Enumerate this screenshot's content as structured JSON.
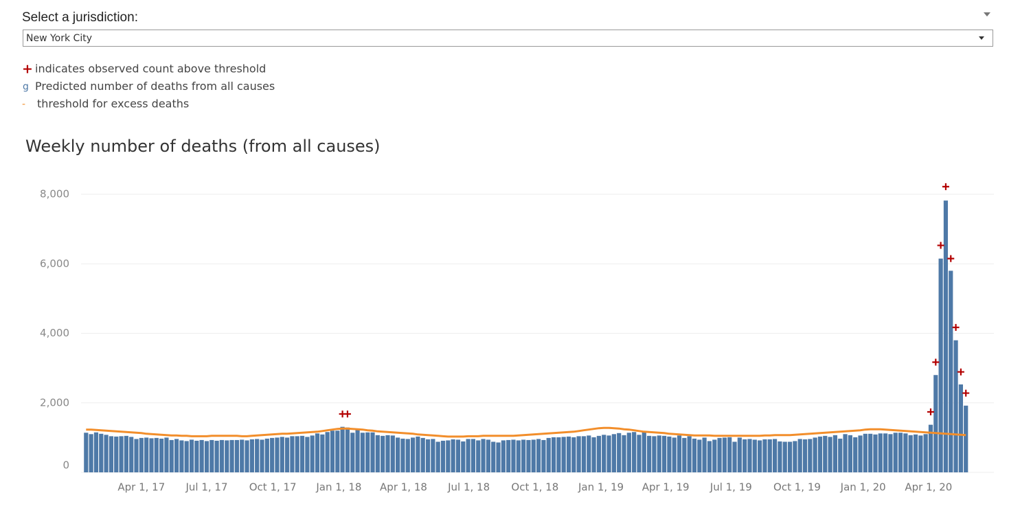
{
  "filter": {
    "label": "Select a jurisdiction:",
    "value": "New York City"
  },
  "chart_data": {
    "type": "bar",
    "title": "Weekly number of deaths (from all causes)",
    "x": [
      "2017-01-14",
      "2017-01-21",
      "2017-01-28",
      "2017-02-04",
      "2017-02-11",
      "2017-02-18",
      "2017-02-25",
      "2017-03-04",
      "2017-03-11",
      "2017-03-18",
      "2017-03-25",
      "2017-04-01",
      "2017-04-08",
      "2017-04-15",
      "2017-04-22",
      "2017-04-29",
      "2017-05-06",
      "2017-05-13",
      "2017-05-20",
      "2017-05-27",
      "2017-06-03",
      "2017-06-10",
      "2017-06-17",
      "2017-06-24",
      "2017-07-01",
      "2017-07-08",
      "2017-07-15",
      "2017-07-22",
      "2017-07-29",
      "2017-08-05",
      "2017-08-12",
      "2017-08-19",
      "2017-08-26",
      "2017-09-02",
      "2017-09-09",
      "2017-09-16",
      "2017-09-23",
      "2017-09-30",
      "2017-10-07",
      "2017-10-14",
      "2017-10-21",
      "2017-10-28",
      "2017-11-04",
      "2017-11-11",
      "2017-11-18",
      "2017-11-25",
      "2017-12-02",
      "2017-12-09",
      "2017-12-16",
      "2017-12-23",
      "2017-12-30",
      "2018-01-06",
      "2018-01-13",
      "2018-01-20",
      "2018-01-27",
      "2018-02-03",
      "2018-02-10",
      "2018-02-17",
      "2018-02-24",
      "2018-03-03",
      "2018-03-10",
      "2018-03-17",
      "2018-03-24",
      "2018-03-31",
      "2018-04-07",
      "2018-04-14",
      "2018-04-21",
      "2018-04-28",
      "2018-05-05",
      "2018-05-12",
      "2018-05-19",
      "2018-05-26",
      "2018-06-02",
      "2018-06-09",
      "2018-06-16",
      "2018-06-23",
      "2018-06-30",
      "2018-07-07",
      "2018-07-14",
      "2018-07-21",
      "2018-07-28",
      "2018-08-04",
      "2018-08-11",
      "2018-08-18",
      "2018-08-25",
      "2018-09-01",
      "2018-09-08",
      "2018-09-15",
      "2018-09-22",
      "2018-09-29",
      "2018-10-06",
      "2018-10-13",
      "2018-10-20",
      "2018-10-27",
      "2018-11-03",
      "2018-11-10",
      "2018-11-17",
      "2018-11-24",
      "2018-12-01",
      "2018-12-08",
      "2018-12-15",
      "2018-12-22",
      "2018-12-29",
      "2019-01-05",
      "2019-01-12",
      "2019-01-19",
      "2019-01-26",
      "2019-02-02",
      "2019-02-09",
      "2019-02-16",
      "2019-02-23",
      "2019-03-02",
      "2019-03-09",
      "2019-03-16",
      "2019-03-23",
      "2019-03-30",
      "2019-04-06",
      "2019-04-13",
      "2019-04-20",
      "2019-04-27",
      "2019-05-04",
      "2019-05-11",
      "2019-05-18",
      "2019-05-25",
      "2019-06-01",
      "2019-06-08",
      "2019-06-15",
      "2019-06-22",
      "2019-06-29",
      "2019-07-06",
      "2019-07-13",
      "2019-07-20",
      "2019-07-27",
      "2019-08-03",
      "2019-08-10",
      "2019-08-17",
      "2019-08-24",
      "2019-08-31",
      "2019-09-07",
      "2019-09-14",
      "2019-09-21",
      "2019-09-28",
      "2019-10-05",
      "2019-10-12",
      "2019-10-19",
      "2019-10-26",
      "2019-11-02",
      "2019-11-09",
      "2019-11-16",
      "2019-11-23",
      "2019-11-30",
      "2019-12-07",
      "2019-12-14",
      "2019-12-21",
      "2019-12-28",
      "2020-01-04",
      "2020-01-11",
      "2020-01-18",
      "2020-01-25",
      "2020-02-01",
      "2020-02-08",
      "2020-02-15",
      "2020-02-22",
      "2020-02-29",
      "2020-03-07",
      "2020-03-14",
      "2020-03-21",
      "2020-03-28",
      "2020-04-04",
      "2020-04-11",
      "2020-04-18",
      "2020-04-25",
      "2020-05-02",
      "2020-05-09",
      "2020-05-16",
      "2020-05-23"
    ],
    "series": [
      {
        "name": "indicates observed count above threshold",
        "symbol": "+",
        "type": "marker",
        "color": "#b30000",
        "values": [
          null,
          null,
          null,
          null,
          null,
          null,
          null,
          null,
          null,
          null,
          null,
          null,
          null,
          null,
          null,
          null,
          null,
          null,
          null,
          null,
          null,
          null,
          null,
          null,
          null,
          null,
          null,
          null,
          null,
          null,
          null,
          null,
          null,
          null,
          null,
          null,
          null,
          null,
          null,
          null,
          null,
          null,
          null,
          null,
          null,
          null,
          null,
          null,
          null,
          null,
          null,
          1680,
          1680,
          null,
          null,
          null,
          null,
          null,
          null,
          null,
          null,
          null,
          null,
          null,
          null,
          null,
          null,
          null,
          null,
          null,
          null,
          null,
          null,
          null,
          null,
          null,
          null,
          null,
          null,
          null,
          null,
          null,
          null,
          null,
          null,
          null,
          null,
          null,
          null,
          null,
          null,
          null,
          null,
          null,
          null,
          null,
          null,
          null,
          null,
          null,
          null,
          null,
          null,
          null,
          null,
          null,
          null,
          null,
          null,
          null,
          null,
          null,
          null,
          null,
          null,
          null,
          null,
          null,
          null,
          null,
          null,
          null,
          null,
          null,
          null,
          null,
          null,
          null,
          null,
          null,
          null,
          null,
          null,
          null,
          null,
          null,
          null,
          null,
          null,
          null,
          null,
          null,
          null,
          null,
          null,
          null,
          null,
          null,
          null,
          null,
          null,
          null,
          null,
          null,
          null,
          null,
          null,
          null,
          null,
          null,
          null,
          null,
          null,
          null,
          null,
          null,
          null,
          null,
          1740,
          3170,
          6530,
          8220,
          6150,
          4170,
          2890,
          2280
        ]
      },
      {
        "name": "Predicted number of deaths from all causes",
        "symbol": "g",
        "type": "bar",
        "color": "#4e79a7",
        "values": [
          1140,
          1100,
          1150,
          1110,
          1080,
          1040,
          1030,
          1040,
          1050,
          1020,
          960,
          990,
          1000,
          980,
          990,
          970,
          1000,
          930,
          960,
          920,
          900,
          940,
          910,
          930,
          900,
          930,
          910,
          930,
          920,
          930,
          930,
          940,
          920,
          950,
          960,
          940,
          970,
          990,
          1000,
          1020,
          1000,
          1040,
          1040,
          1050,
          1020,
          1060,
          1120,
          1090,
          1160,
          1200,
          1200,
          1310,
          1290,
          1140,
          1240,
          1140,
          1150,
          1150,
          1070,
          1050,
          1070,
          1060,
          1000,
          970,
          960,
          1000,
          1030,
          990,
          950,
          960,
          880,
          910,
          920,
          950,
          940,
          890,
          960,
          960,
          920,
          960,
          940,
          880,
          860,
          920,
          930,
          940,
          920,
          940,
          930,
          940,
          960,
          930,
          990,
          1010,
          1010,
          1020,
          1030,
          1010,
          1040,
          1040,
          1060,
          1010,
          1050,
          1080,
          1060,
          1100,
          1130,
          1070,
          1140,
          1160,
          1080,
          1190,
          1050,
          1040,
          1060,
          1050,
          1030,
          1000,
          1060,
          990,
          1040,
          970,
          940,
          1000,
          900,
          940,
          990,
          1000,
          1010,
          880,
          1000,
          950,
          960,
          940,
          920,
          950,
          950,
          960,
          890,
          880,
          880,
          900,
          960,
          950,
          960,
          1000,
          1030,
          1050,
          1020,
          1070,
          970,
          1100,
          1070,
          1010,
          1060,
          1110,
          1110,
          1090,
          1120,
          1120,
          1100,
          1140,
          1140,
          1120,
          1070,
          1090,
          1060,
          1100,
          1370,
          2800,
          6150,
          7820,
          5800,
          3800,
          2530,
          1920
        ]
      },
      {
        "name": "threshold for excess deaths",
        "symbol": "-",
        "type": "line",
        "color": "#f28e2b",
        "values": [
          1230,
          1230,
          1220,
          1210,
          1200,
          1190,
          1180,
          1170,
          1160,
          1150,
          1140,
          1130,
          1110,
          1100,
          1090,
          1080,
          1070,
          1060,
          1060,
          1050,
          1050,
          1040,
          1040,
          1040,
          1040,
          1050,
          1050,
          1050,
          1050,
          1050,
          1050,
          1040,
          1040,
          1050,
          1060,
          1070,
          1080,
          1090,
          1100,
          1110,
          1110,
          1120,
          1130,
          1140,
          1150,
          1160,
          1170,
          1190,
          1210,
          1230,
          1250,
          1260,
          1260,
          1250,
          1240,
          1230,
          1210,
          1200,
          1180,
          1170,
          1160,
          1150,
          1140,
          1130,
          1120,
          1110,
          1090,
          1080,
          1070,
          1060,
          1050,
          1040,
          1030,
          1030,
          1030,
          1030,
          1040,
          1040,
          1040,
          1050,
          1050,
          1050,
          1050,
          1050,
          1050,
          1050,
          1060,
          1070,
          1080,
          1090,
          1100,
          1110,
          1120,
          1130,
          1140,
          1150,
          1160,
          1170,
          1190,
          1210,
          1230,
          1250,
          1270,
          1280,
          1280,
          1270,
          1260,
          1240,
          1230,
          1210,
          1190,
          1170,
          1160,
          1150,
          1140,
          1130,
          1110,
          1100,
          1090,
          1080,
          1070,
          1060,
          1060,
          1060,
          1060,
          1050,
          1050,
          1050,
          1050,
          1050,
          1050,
          1050,
          1050,
          1050,
          1050,
          1060,
          1060,
          1070,
          1070,
          1070,
          1070,
          1080,
          1090,
          1100,
          1110,
          1120,
          1130,
          1140,
          1150,
          1160,
          1170,
          1180,
          1190,
          1200,
          1210,
          1230,
          1240,
          1240,
          1240,
          1230,
          1220,
          1210,
          1200,
          1190,
          1180,
          1170,
          1160,
          1150,
          1140,
          1130,
          1120,
          1110,
          1100,
          1090,
          1080,
          1070
        ]
      }
    ],
    "xlim": [
      "2017-01-07",
      "2020-07-01"
    ],
    "xticks": [
      {
        "value": "2017-04-01",
        "label": "Apr 1, 17"
      },
      {
        "value": "2017-07-01",
        "label": "Jul 1, 17"
      },
      {
        "value": "2017-10-01",
        "label": "Oct 1, 17"
      },
      {
        "value": "2018-01-01",
        "label": "Jan 1, 18"
      },
      {
        "value": "2018-04-01",
        "label": "Apr 1, 18"
      },
      {
        "value": "2018-07-01",
        "label": "Jul 1, 18"
      },
      {
        "value": "2018-10-01",
        "label": "Oct 1, 18"
      },
      {
        "value": "2019-01-01",
        "label": "Jan 1, 19"
      },
      {
        "value": "2019-04-01",
        "label": "Apr 1, 19"
      },
      {
        "value": "2019-07-01",
        "label": "Jul 1, 19"
      },
      {
        "value": "2019-10-01",
        "label": "Oct 1, 19"
      },
      {
        "value": "2020-01-01",
        "label": "Jan 1, 20"
      },
      {
        "value": "2020-04-01",
        "label": "Apr 1, 20"
      }
    ],
    "ylim": [
      0,
      8000
    ],
    "yticks": [
      0,
      {
        "value": 2000,
        "label": "2,000"
      },
      {
        "value": 4000,
        "label": "4,000"
      },
      {
        "value": 6000,
        "label": "6,000"
      },
      {
        "value": 8000,
        "label": "8,000"
      }
    ],
    "grid": true
  }
}
